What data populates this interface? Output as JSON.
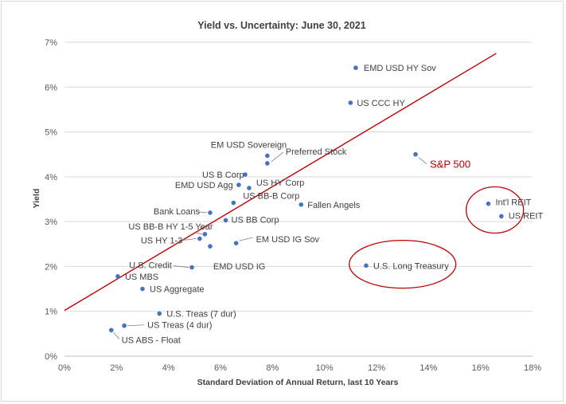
{
  "chart_data": {
    "type": "scatter",
    "title": "Yield vs. Uncertainty: June 30, 2021",
    "xlabel": "Standard Deviation of Annual Return, last 10 Years",
    "ylabel": "Yield",
    "xlim": [
      0,
      18
    ],
    "ylim": [
      0,
      7
    ],
    "x_ticks": [
      "0%",
      "2%",
      "4%",
      "6%",
      "8%",
      "10%",
      "12%",
      "14%",
      "16%",
      "18%"
    ],
    "y_ticks": [
      "0%",
      "1%",
      "2%",
      "3%",
      "4%",
      "5%",
      "6%",
      "7%"
    ],
    "grid": "horizontal",
    "point_color": "#4472c4",
    "trendline": {
      "color": "#c00000",
      "start": [
        0,
        1.02
      ],
      "end": [
        16.6,
        6.75
      ]
    },
    "highlight_color": "#c00000",
    "points": [
      {
        "name": "EMD USD HY Sov",
        "x": 11.2,
        "y": 6.43
      },
      {
        "name": "US CCC HY",
        "x": 11.0,
        "y": 5.65
      },
      {
        "name": "S&P 500",
        "x": 13.5,
        "y": 4.5
      },
      {
        "name": "EM USD Sovereign",
        "x": 7.8,
        "y": 4.47
      },
      {
        "name": "Preferred Stock",
        "x": 7.8,
        "y": 4.3
      },
      {
        "name": "US B Corp",
        "x": 6.95,
        "y": 4.05
      },
      {
        "name": "EMD USD Agg",
        "x": 6.7,
        "y": 3.82
      },
      {
        "name": "US HY Corp",
        "x": 7.1,
        "y": 3.75
      },
      {
        "name": "US BB-B Corp",
        "x": 6.5,
        "y": 3.42
      },
      {
        "name": "Fallen Angels",
        "x": 9.1,
        "y": 3.38
      },
      {
        "name": "Int'l REIT",
        "x": 16.3,
        "y": 3.4
      },
      {
        "name": "US REIT",
        "x": 16.8,
        "y": 3.12
      },
      {
        "name": "Bank Loans",
        "x": 5.6,
        "y": 3.2
      },
      {
        "name": "US BB Corp",
        "x": 6.2,
        "y": 3.03
      },
      {
        "name": "US BB-B HY 1-5 Year",
        "x": 5.4,
        "y": 2.72
      },
      {
        "name": "US HY 1-3",
        "x": 5.2,
        "y": 2.62
      },
      {
        "name": "EM USD IG Sov",
        "x": 6.6,
        "y": 2.52
      },
      {
        "name": "EMD USD IG",
        "x": 5.6,
        "y": 2.45
      },
      {
        "name": "U.S. Credit",
        "x": 4.9,
        "y": 1.98
      },
      {
        "name": "U.S. Long Treasury",
        "x": 11.6,
        "y": 2.02
      },
      {
        "name": "US MBS",
        "x": 2.05,
        "y": 1.78
      },
      {
        "name": "US Aggregate",
        "x": 3.0,
        "y": 1.5
      },
      {
        "name": "U.S. Treas (7 dur)",
        "x": 3.65,
        "y": 0.95
      },
      {
        "name": "US Treas (4 dur)",
        "x": 2.3,
        "y": 0.68
      },
      {
        "name": "US ABS - Float",
        "x": 1.8,
        "y": 0.58
      }
    ],
    "highlighted": [
      "S&P 500",
      "Int'l REIT",
      "US REIT",
      "U.S. Long Treasury"
    ]
  }
}
